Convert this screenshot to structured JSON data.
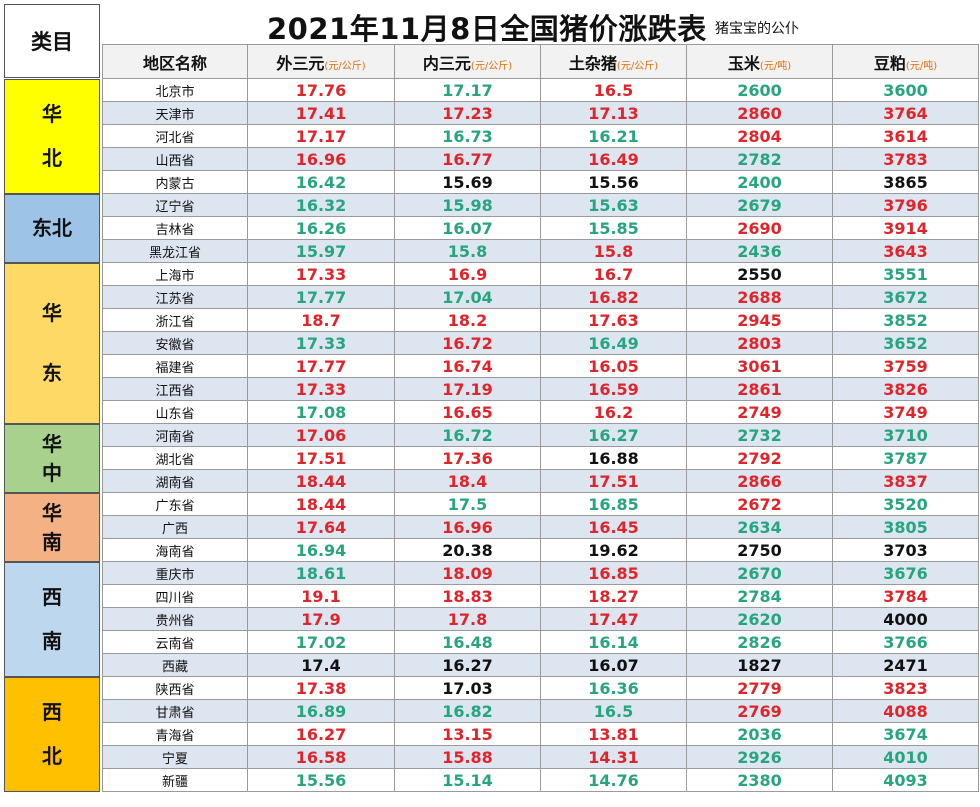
{
  "title": "2021年11月8日全国猪价涨跌表",
  "subtitle": "猪宝宝的公仆",
  "category_header": "类目",
  "columns": [
    {
      "name": "地区名称",
      "unit": ""
    },
    {
      "name": "外三元",
      "unit": "(元/公斤)"
    },
    {
      "name": "内三元",
      "unit": "(元/公斤)"
    },
    {
      "name": "土杂猪",
      "unit": "(元/公斤)"
    },
    {
      "name": "玉米",
      "unit": "(元/吨)"
    },
    {
      "name": "豆粕",
      "unit": "(元/吨)"
    }
  ],
  "colors": {
    "up": "#e0242a",
    "down": "#27a57d",
    "flat": "#111111"
  },
  "groups": [
    {
      "chars": [
        "华",
        "北"
      ],
      "rows": 5,
      "color": "#ffff00"
    },
    {
      "chars": [
        "东北"
      ],
      "rows": 3,
      "color": "#9dc3e6"
    },
    {
      "chars": [
        "华",
        "东"
      ],
      "rows": 7,
      "color": "#ffd966"
    },
    {
      "chars": [
        "华",
        "中"
      ],
      "rows": 3,
      "color": "#a9d18e"
    },
    {
      "chars": [
        "华",
        "南"
      ],
      "rows": 3,
      "color": "#f4b183"
    },
    {
      "chars": [
        "西",
        "南"
      ],
      "rows": 5,
      "color": "#bdd7ee"
    },
    {
      "chars": [
        "西",
        "北"
      ],
      "rows": 5,
      "color": "#ffc000"
    }
  ],
  "rows": [
    {
      "region": "北京市",
      "values": [
        {
          "v": "17.76",
          "t": "up"
        },
        {
          "v": "17.17",
          "t": "down"
        },
        {
          "v": "16.5",
          "t": "up"
        },
        {
          "v": "2600",
          "t": "down"
        },
        {
          "v": "3600",
          "t": "down"
        }
      ]
    },
    {
      "region": "天津市",
      "values": [
        {
          "v": "17.41",
          "t": "up"
        },
        {
          "v": "17.23",
          "t": "up"
        },
        {
          "v": "17.13",
          "t": "up"
        },
        {
          "v": "2860",
          "t": "up"
        },
        {
          "v": "3764",
          "t": "up"
        }
      ]
    },
    {
      "region": "河北省",
      "values": [
        {
          "v": "17.17",
          "t": "up"
        },
        {
          "v": "16.73",
          "t": "down"
        },
        {
          "v": "16.21",
          "t": "down"
        },
        {
          "v": "2804",
          "t": "up"
        },
        {
          "v": "3614",
          "t": "up"
        }
      ]
    },
    {
      "region": "山西省",
      "values": [
        {
          "v": "16.96",
          "t": "up"
        },
        {
          "v": "16.77",
          "t": "up"
        },
        {
          "v": "16.49",
          "t": "up"
        },
        {
          "v": "2782",
          "t": "down"
        },
        {
          "v": "3783",
          "t": "up"
        }
      ]
    },
    {
      "region": "内蒙古",
      "values": [
        {
          "v": "16.42",
          "t": "down"
        },
        {
          "v": "15.69",
          "t": "flat"
        },
        {
          "v": "15.56",
          "t": "flat"
        },
        {
          "v": "2400",
          "t": "down"
        },
        {
          "v": "3865",
          "t": "flat"
        }
      ]
    },
    {
      "region": "辽宁省",
      "values": [
        {
          "v": "16.32",
          "t": "down"
        },
        {
          "v": "15.98",
          "t": "down"
        },
        {
          "v": "15.63",
          "t": "down"
        },
        {
          "v": "2679",
          "t": "down"
        },
        {
          "v": "3796",
          "t": "up"
        }
      ]
    },
    {
      "region": "吉林省",
      "values": [
        {
          "v": "16.26",
          "t": "down"
        },
        {
          "v": "16.07",
          "t": "down"
        },
        {
          "v": "15.85",
          "t": "down"
        },
        {
          "v": "2690",
          "t": "up"
        },
        {
          "v": "3914",
          "t": "up"
        }
      ]
    },
    {
      "region": "黑龙江省",
      "values": [
        {
          "v": "15.97",
          "t": "down"
        },
        {
          "v": "15.8",
          "t": "down"
        },
        {
          "v": "15.8",
          "t": "up"
        },
        {
          "v": "2436",
          "t": "down"
        },
        {
          "v": "3643",
          "t": "up"
        }
      ]
    },
    {
      "region": "上海市",
      "values": [
        {
          "v": "17.33",
          "t": "up"
        },
        {
          "v": "16.9",
          "t": "up"
        },
        {
          "v": "16.7",
          "t": "up"
        },
        {
          "v": "2550",
          "t": "flat"
        },
        {
          "v": "3551",
          "t": "down"
        }
      ]
    },
    {
      "region": "江苏省",
      "values": [
        {
          "v": "17.77",
          "t": "down"
        },
        {
          "v": "17.04",
          "t": "down"
        },
        {
          "v": "16.82",
          "t": "up"
        },
        {
          "v": "2688",
          "t": "up"
        },
        {
          "v": "3672",
          "t": "down"
        }
      ]
    },
    {
      "region": "浙江省",
      "values": [
        {
          "v": "18.7",
          "t": "up"
        },
        {
          "v": "18.2",
          "t": "up"
        },
        {
          "v": "17.63",
          "t": "up"
        },
        {
          "v": "2945",
          "t": "up"
        },
        {
          "v": "3852",
          "t": "down"
        }
      ]
    },
    {
      "region": "安徽省",
      "values": [
        {
          "v": "17.33",
          "t": "down"
        },
        {
          "v": "16.72",
          "t": "up"
        },
        {
          "v": "16.49",
          "t": "down"
        },
        {
          "v": "2803",
          "t": "up"
        },
        {
          "v": "3652",
          "t": "down"
        }
      ]
    },
    {
      "region": "福建省",
      "values": [
        {
          "v": "17.77",
          "t": "up"
        },
        {
          "v": "16.74",
          "t": "up"
        },
        {
          "v": "16.05",
          "t": "up"
        },
        {
          "v": "3061",
          "t": "up"
        },
        {
          "v": "3759",
          "t": "up"
        }
      ]
    },
    {
      "region": "江西省",
      "values": [
        {
          "v": "17.33",
          "t": "up"
        },
        {
          "v": "17.19",
          "t": "up"
        },
        {
          "v": "16.59",
          "t": "up"
        },
        {
          "v": "2861",
          "t": "up"
        },
        {
          "v": "3826",
          "t": "up"
        }
      ]
    },
    {
      "region": "山东省",
      "values": [
        {
          "v": "17.08",
          "t": "down"
        },
        {
          "v": "16.65",
          "t": "up"
        },
        {
          "v": "16.2",
          "t": "up"
        },
        {
          "v": "2749",
          "t": "up"
        },
        {
          "v": "3749",
          "t": "up"
        }
      ]
    },
    {
      "region": "河南省",
      "values": [
        {
          "v": "17.06",
          "t": "up"
        },
        {
          "v": "16.72",
          "t": "down"
        },
        {
          "v": "16.27",
          "t": "down"
        },
        {
          "v": "2732",
          "t": "down"
        },
        {
          "v": "3710",
          "t": "down"
        }
      ]
    },
    {
      "region": "湖北省",
      "values": [
        {
          "v": "17.51",
          "t": "up"
        },
        {
          "v": "17.36",
          "t": "up"
        },
        {
          "v": "16.88",
          "t": "flat"
        },
        {
          "v": "2792",
          "t": "up"
        },
        {
          "v": "3787",
          "t": "down"
        }
      ]
    },
    {
      "region": "湖南省",
      "values": [
        {
          "v": "18.44",
          "t": "up"
        },
        {
          "v": "18.4",
          "t": "up"
        },
        {
          "v": "17.51",
          "t": "up"
        },
        {
          "v": "2866",
          "t": "up"
        },
        {
          "v": "3837",
          "t": "up"
        }
      ]
    },
    {
      "region": "广东省",
      "values": [
        {
          "v": "18.44",
          "t": "up"
        },
        {
          "v": "17.5",
          "t": "down"
        },
        {
          "v": "16.85",
          "t": "down"
        },
        {
          "v": "2672",
          "t": "up"
        },
        {
          "v": "3520",
          "t": "down"
        }
      ]
    },
    {
      "region": "广西",
      "values": [
        {
          "v": "17.64",
          "t": "up"
        },
        {
          "v": "16.96",
          "t": "up"
        },
        {
          "v": "16.45",
          "t": "up"
        },
        {
          "v": "2634",
          "t": "down"
        },
        {
          "v": "3805",
          "t": "down"
        }
      ]
    },
    {
      "region": "海南省",
      "values": [
        {
          "v": "16.94",
          "t": "down"
        },
        {
          "v": "20.38",
          "t": "flat"
        },
        {
          "v": "19.62",
          "t": "flat"
        },
        {
          "v": "2750",
          "t": "flat"
        },
        {
          "v": "3703",
          "t": "flat"
        }
      ]
    },
    {
      "region": "重庆市",
      "values": [
        {
          "v": "18.61",
          "t": "down"
        },
        {
          "v": "18.09",
          "t": "up"
        },
        {
          "v": "16.85",
          "t": "up"
        },
        {
          "v": "2670",
          "t": "down"
        },
        {
          "v": "3676",
          "t": "down"
        }
      ]
    },
    {
      "region": "四川省",
      "values": [
        {
          "v": "19.1",
          "t": "up"
        },
        {
          "v": "18.83",
          "t": "up"
        },
        {
          "v": "18.27",
          "t": "up"
        },
        {
          "v": "2784",
          "t": "down"
        },
        {
          "v": "3784",
          "t": "up"
        }
      ]
    },
    {
      "region": "贵州省",
      "values": [
        {
          "v": "17.9",
          "t": "up"
        },
        {
          "v": "17.8",
          "t": "up"
        },
        {
          "v": "17.47",
          "t": "up"
        },
        {
          "v": "2620",
          "t": "down"
        },
        {
          "v": "4000",
          "t": "flat"
        }
      ]
    },
    {
      "region": "云南省",
      "values": [
        {
          "v": "17.02",
          "t": "down"
        },
        {
          "v": "16.48",
          "t": "down"
        },
        {
          "v": "16.14",
          "t": "down"
        },
        {
          "v": "2826",
          "t": "down"
        },
        {
          "v": "3766",
          "t": "down"
        }
      ]
    },
    {
      "region": "西藏",
      "values": [
        {
          "v": "17.4",
          "t": "flat"
        },
        {
          "v": "16.27",
          "t": "flat"
        },
        {
          "v": "16.07",
          "t": "flat"
        },
        {
          "v": "1827",
          "t": "flat"
        },
        {
          "v": "2471",
          "t": "flat"
        }
      ]
    },
    {
      "region": "陕西省",
      "values": [
        {
          "v": "17.38",
          "t": "up"
        },
        {
          "v": "17.03",
          "t": "flat"
        },
        {
          "v": "16.36",
          "t": "down"
        },
        {
          "v": "2779",
          "t": "up"
        },
        {
          "v": "3823",
          "t": "up"
        }
      ]
    },
    {
      "region": "甘肃省",
      "values": [
        {
          "v": "16.89",
          "t": "down"
        },
        {
          "v": "16.82",
          "t": "down"
        },
        {
          "v": "16.5",
          "t": "down"
        },
        {
          "v": "2769",
          "t": "up"
        },
        {
          "v": "4088",
          "t": "up"
        }
      ]
    },
    {
      "region": "青海省",
      "values": [
        {
          "v": "16.27",
          "t": "up"
        },
        {
          "v": "13.15",
          "t": "up"
        },
        {
          "v": "13.81",
          "t": "up"
        },
        {
          "v": "2036",
          "t": "down"
        },
        {
          "v": "3674",
          "t": "down"
        }
      ]
    },
    {
      "region": "宁夏",
      "values": [
        {
          "v": "16.58",
          "t": "up"
        },
        {
          "v": "15.88",
          "t": "up"
        },
        {
          "v": "14.31",
          "t": "up"
        },
        {
          "v": "2926",
          "t": "down"
        },
        {
          "v": "4010",
          "t": "down"
        }
      ]
    },
    {
      "region": "新疆",
      "values": [
        {
          "v": "15.56",
          "t": "down"
        },
        {
          "v": "15.14",
          "t": "down"
        },
        {
          "v": "14.76",
          "t": "down"
        },
        {
          "v": "2380",
          "t": "down"
        },
        {
          "v": "4093",
          "t": "down"
        }
      ]
    }
  ]
}
